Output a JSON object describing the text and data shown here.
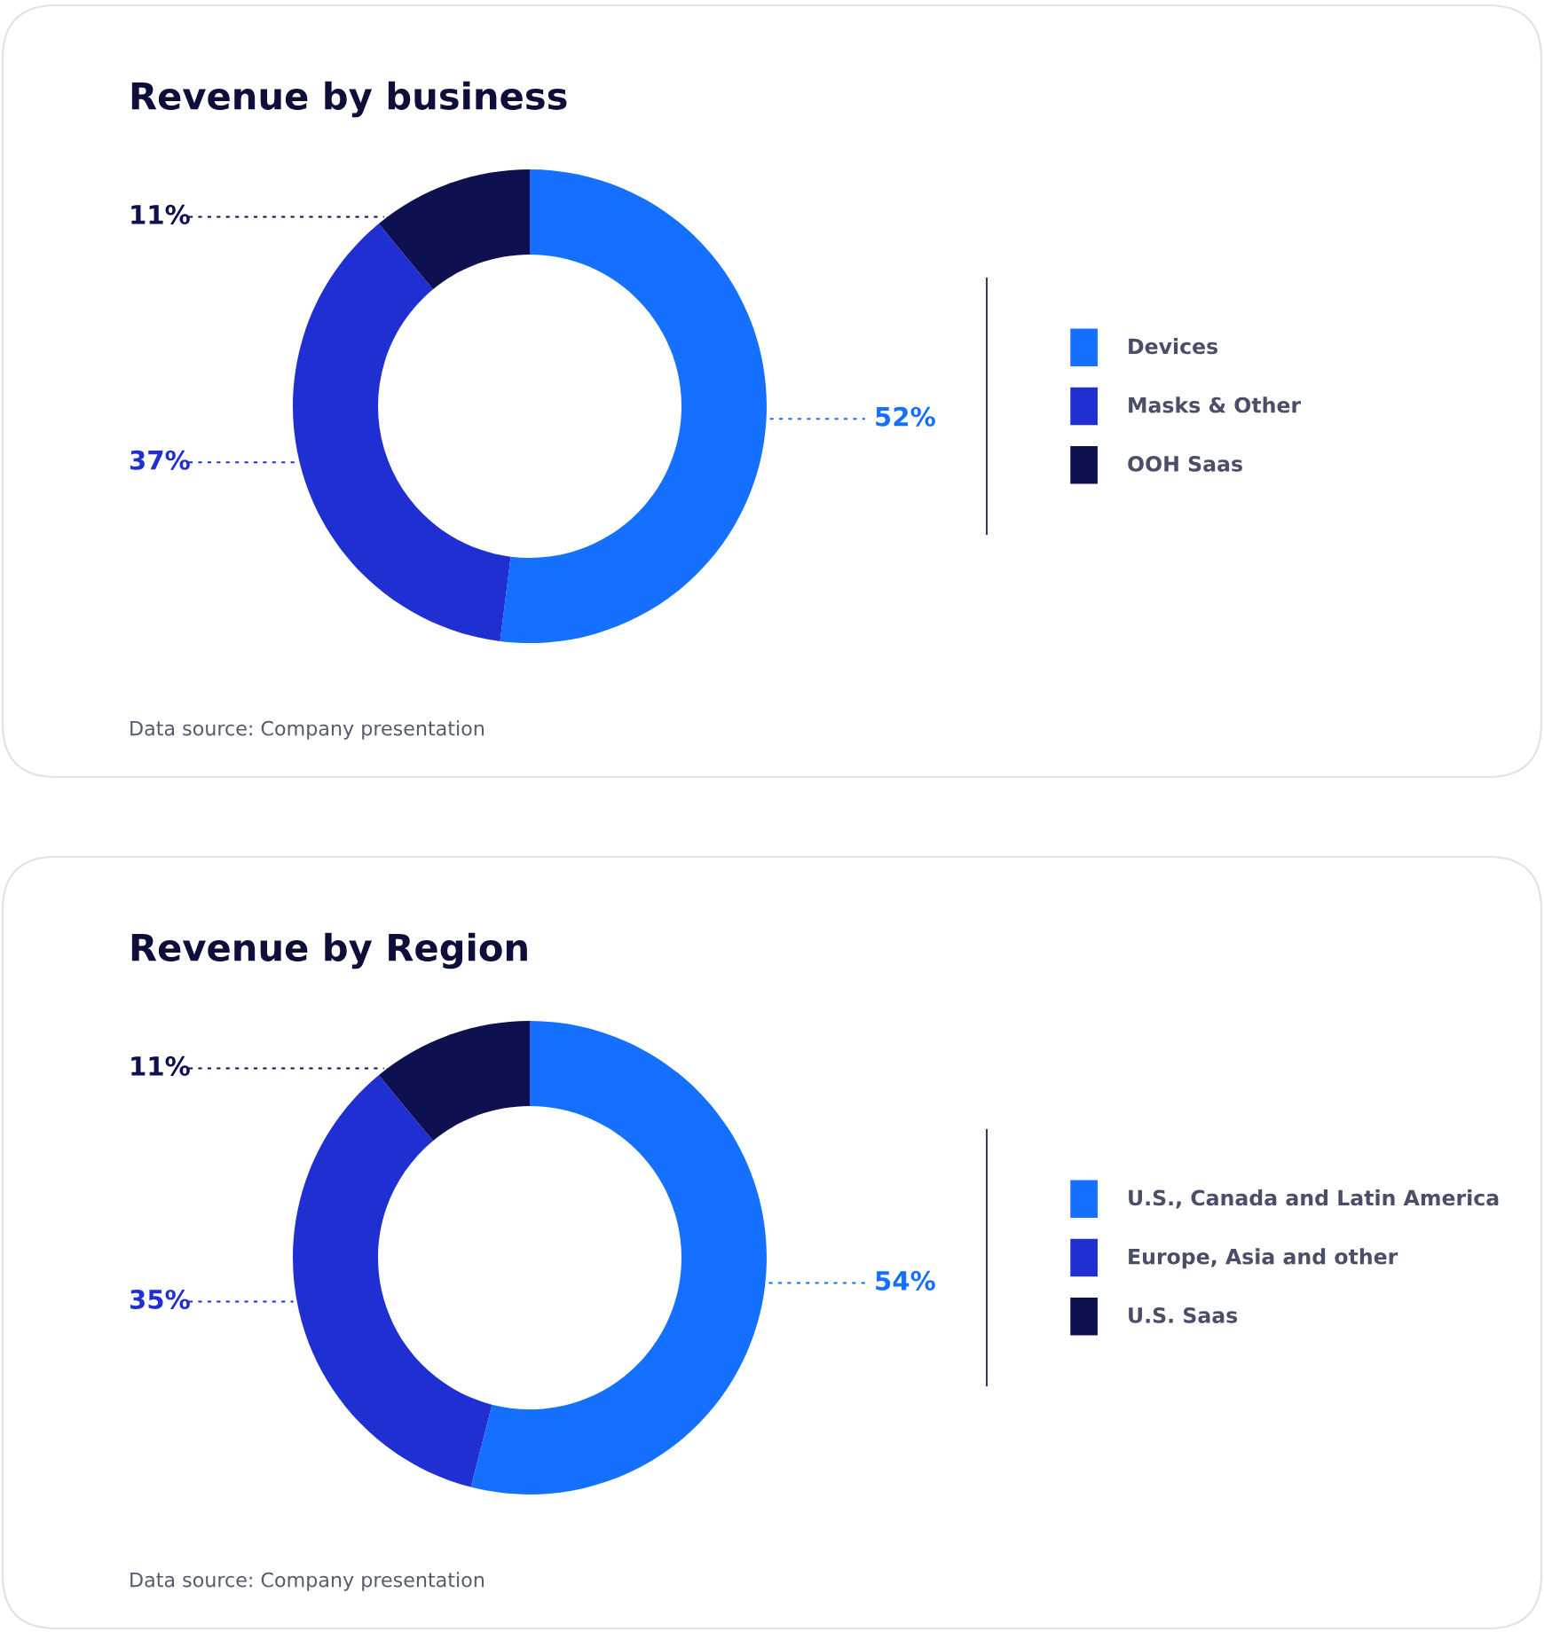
{
  "chart_data": [
    {
      "type": "donut",
      "title": "Revenue by business",
      "categories": [
        "Devices",
        "Masks & Other",
        "OOH Saas"
      ],
      "values": [
        52,
        37,
        11
      ],
      "value_labels": [
        "52%",
        "37%",
        "11%"
      ],
      "colors": [
        "#1670ff",
        "#1f2fd2",
        "#0d1150"
      ],
      "legend": "right",
      "annotations": [
        "Data source: Company presentation"
      ]
    },
    {
      "type": "donut",
      "title": "Revenue by Region",
      "categories": [
        "U.S., Canada and Latin America",
        "Europe, Asia and other",
        "U.S. Saas"
      ],
      "values": [
        54,
        35,
        11
      ],
      "value_labels": [
        "54%",
        "35%",
        "11%"
      ],
      "colors": [
        "#1670ff",
        "#1f2fd2",
        "#0d1150"
      ],
      "legend": "right",
      "annotations": [
        "Data source: Company presentation"
      ]
    }
  ]
}
